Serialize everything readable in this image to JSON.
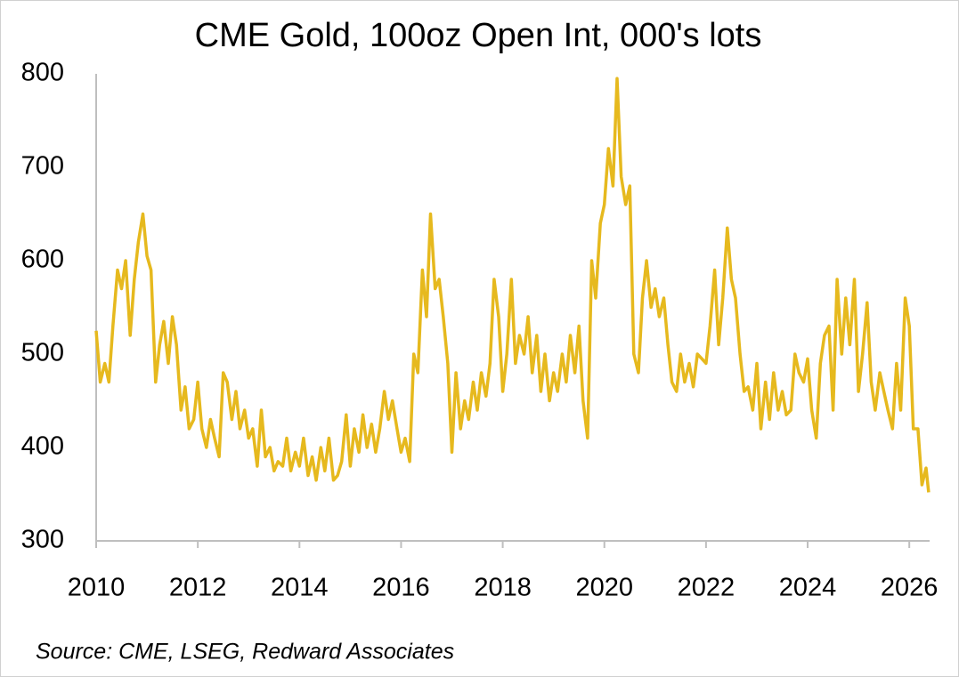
{
  "chart_data": {
    "type": "line",
    "title": "CME Gold, 100oz Open Int, 000's lots",
    "source": "Source: CME, LSEG, Redward Associates",
    "color": "#e6b91e",
    "xlim": [
      2010,
      2026.4
    ],
    "xticks": [
      2010,
      2012,
      2014,
      2016,
      2018,
      2020,
      2022,
      2024,
      2026
    ],
    "ylim": [
      300,
      800
    ],
    "yticks": [
      300,
      400,
      500,
      600,
      700,
      800
    ],
    "grid": false,
    "x": [
      2010,
      2010.08,
      2010.17,
      2010.25,
      2010.33,
      2010.42,
      2010.5,
      2010.58,
      2010.67,
      2010.75,
      2010.83,
      2010.92,
      2011,
      2011.08,
      2011.17,
      2011.25,
      2011.33,
      2011.42,
      2011.5,
      2011.58,
      2011.67,
      2011.75,
      2011.83,
      2011.92,
      2012,
      2012.08,
      2012.17,
      2012.25,
      2012.33,
      2012.42,
      2012.5,
      2012.58,
      2012.67,
      2012.75,
      2012.83,
      2012.92,
      2013,
      2013.08,
      2013.17,
      2013.25,
      2013.33,
      2013.42,
      2013.5,
      2013.58,
      2013.67,
      2013.75,
      2013.83,
      2013.92,
      2014,
      2014.08,
      2014.17,
      2014.25,
      2014.33,
      2014.42,
      2014.5,
      2014.58,
      2014.67,
      2014.75,
      2014.83,
      2014.92,
      2015,
      2015.08,
      2015.17,
      2015.25,
      2015.33,
      2015.42,
      2015.5,
      2015.58,
      2015.67,
      2015.75,
      2015.83,
      2015.92,
      2016,
      2016.08,
      2016.17,
      2016.25,
      2016.33,
      2016.42,
      2016.5,
      2016.58,
      2016.67,
      2016.75,
      2016.83,
      2016.92,
      2017,
      2017.08,
      2017.17,
      2017.25,
      2017.33,
      2017.42,
      2017.5,
      2017.58,
      2017.67,
      2017.75,
      2017.83,
      2017.92,
      2018,
      2018.08,
      2018.17,
      2018.25,
      2018.33,
      2018.42,
      2018.5,
      2018.58,
      2018.67,
      2018.75,
      2018.83,
      2018.92,
      2019,
      2019.08,
      2019.17,
      2019.25,
      2019.33,
      2019.42,
      2019.5,
      2019.58,
      2019.67,
      2019.75,
      2019.83,
      2019.92,
      2020,
      2020.08,
      2020.17,
      2020.25,
      2020.33,
      2020.42,
      2020.5,
      2020.58,
      2020.67,
      2020.75,
      2020.83,
      2020.92,
      2021,
      2021.08,
      2021.17,
      2021.25,
      2021.33,
      2021.42,
      2021.5,
      2021.58,
      2021.67,
      2021.75,
      2021.83,
      2021.92,
      2022,
      2022.08,
      2022.17,
      2022.25,
      2022.33,
      2022.42,
      2022.5,
      2022.58,
      2022.67,
      2022.75,
      2022.83,
      2022.92,
      2023,
      2023.08,
      2023.17,
      2023.25,
      2023.33,
      2023.42,
      2023.5,
      2023.58,
      2023.67,
      2023.75,
      2023.83,
      2023.92,
      2024,
      2024.08,
      2024.17,
      2024.25,
      2024.33,
      2024.42,
      2024.5,
      2024.58,
      2024.67,
      2024.75,
      2024.83,
      2024.92,
      2025,
      2025.08,
      2025.17,
      2025.25,
      2025.33,
      2025.42,
      2025.5,
      2025.58,
      2025.67,
      2025.75,
      2025.83,
      2025.92,
      2026,
      2026.08,
      2026.17,
      2026.25,
      2026.33,
      2026.38
    ],
    "values": [
      525,
      470,
      490,
      470,
      530,
      590,
      570,
      600,
      520,
      580,
      620,
      650,
      605,
      590,
      470,
      510,
      535,
      490,
      540,
      510,
      440,
      465,
      420,
      430,
      470,
      420,
      400,
      430,
      410,
      390,
      480,
      470,
      430,
      460,
      420,
      440,
      410,
      420,
      380,
      440,
      390,
      400,
      375,
      385,
      380,
      410,
      375,
      395,
      380,
      410,
      370,
      390,
      365,
      400,
      375,
      410,
      365,
      370,
      385,
      435,
      380,
      420,
      395,
      435,
      400,
      425,
      395,
      420,
      460,
      430,
      450,
      420,
      395,
      410,
      385,
      500,
      480,
      590,
      540,
      650,
      570,
      580,
      540,
      490,
      395,
      480,
      420,
      450,
      430,
      470,
      440,
      480,
      455,
      490,
      580,
      540,
      460,
      500,
      580,
      490,
      520,
      500,
      540,
      480,
      520,
      460,
      500,
      450,
      480,
      460,
      500,
      470,
      520,
      480,
      530,
      450,
      410,
      600,
      560,
      640,
      660,
      720,
      680,
      795,
      690,
      660,
      680,
      500,
      480,
      560,
      600,
      550,
      570,
      540,
      560,
      510,
      470,
      460,
      500,
      470,
      490,
      465,
      500,
      495,
      490,
      530,
      590,
      510,
      560,
      635,
      580,
      560,
      500,
      460,
      465,
      440,
      490,
      420,
      470,
      430,
      480,
      440,
      460,
      435,
      440,
      500,
      480,
      470,
      495,
      440,
      410,
      490,
      520,
      530,
      440,
      580,
      500,
      560,
      510,
      580,
      460,
      500,
      555,
      470,
      440,
      480,
      460,
      440,
      420,
      490,
      440,
      560,
      530,
      420,
      420,
      360,
      378,
      352
    ]
  }
}
